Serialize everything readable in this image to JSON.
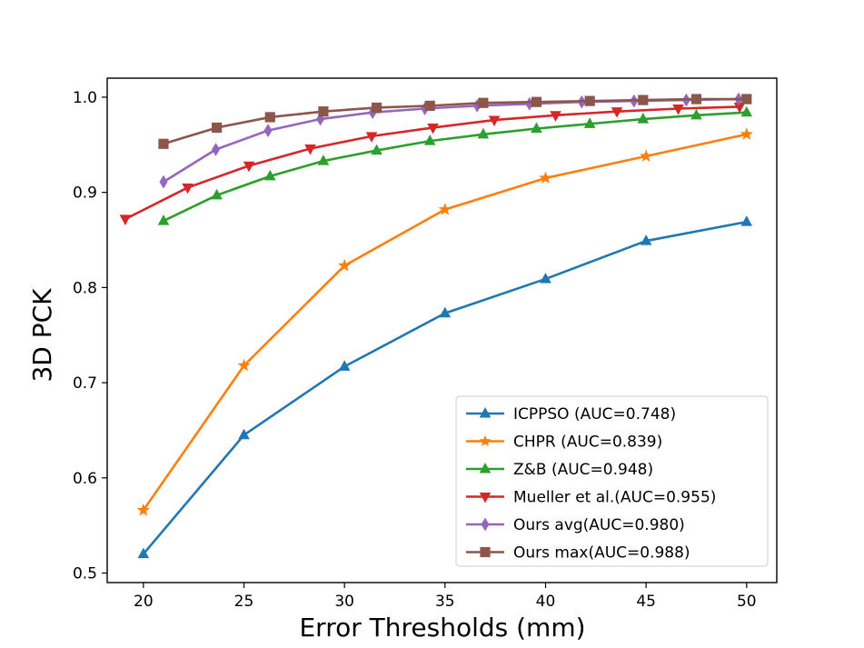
{
  "chart_data": {
    "type": "line",
    "title": "",
    "xlabel": "Error Thresholds (mm)",
    "ylabel": "3D PCK",
    "xlim": [
      18.2,
      51.5
    ],
    "ylim": [
      0.49,
      1.02
    ],
    "xticks": [
      20,
      25,
      30,
      35,
      40,
      45,
      50
    ],
    "yticks": [
      0.5,
      0.6,
      0.7,
      0.8,
      0.9,
      1.0
    ],
    "xtick_labels": [
      "20",
      "25",
      "30",
      "35",
      "40",
      "45",
      "50"
    ],
    "ytick_labels": [
      "0.5",
      "0.6",
      "0.7",
      "0.8",
      "0.9",
      "1.0"
    ],
    "legend_position": "lower-right",
    "series": [
      {
        "name": "ICPPSO (AUC=0.748)",
        "color": "#1f77b4",
        "marker": "triangle-up",
        "x": [
          20,
          25,
          30,
          35,
          40,
          45,
          50
        ],
        "y": [
          0.52,
          0.645,
          0.717,
          0.773,
          0.809,
          0.849,
          0.869
        ]
      },
      {
        "name": "CHPR (AUC=0.839)",
        "color": "#ff7f0e",
        "marker": "star",
        "x": [
          20,
          25,
          30,
          35,
          40,
          45,
          50
        ],
        "y": [
          0.566,
          0.718,
          0.823,
          0.882,
          0.915,
          0.938,
          0.961
        ]
      },
      {
        "name": "Z&B (AUC=0.948)",
        "color": "#2ca02c",
        "marker": "triangle-up",
        "x": [
          21,
          23.65,
          26.3,
          28.95,
          31.6,
          34.25,
          36.9,
          39.55,
          42.2,
          44.85,
          47.5,
          50
        ],
        "y": [
          0.87,
          0.897,
          0.917,
          0.933,
          0.944,
          0.954,
          0.961,
          0.967,
          0.972,
          0.977,
          0.981,
          0.984
        ]
      },
      {
        "name": "Mueller et al.(AUC=0.955)",
        "color": "#d62728",
        "marker": "triangle-down",
        "x": [
          19.1,
          22.2,
          25.25,
          28.3,
          31.35,
          34.4,
          37.45,
          40.5,
          43.55,
          46.6,
          49.65
        ],
        "y": [
          0.872,
          0.905,
          0.928,
          0.946,
          0.959,
          0.968,
          0.976,
          0.981,
          0.985,
          0.988,
          0.99
        ]
      },
      {
        "name": "Ours avg(AUC=0.980)",
        "color": "#9467bd",
        "marker": "diamond",
        "x": [
          21,
          23.6,
          26.2,
          28.8,
          31.4,
          34,
          36.6,
          39.2,
          41.8,
          44.4,
          47,
          49.6
        ],
        "y": [
          0.911,
          0.945,
          0.965,
          0.977,
          0.984,
          0.988,
          0.991,
          0.993,
          0.995,
          0.996,
          0.997,
          0.998
        ]
      },
      {
        "name": "Ours max(AUC=0.988)",
        "color": "#8c564b",
        "marker": "square",
        "x": [
          21,
          23.65,
          26.3,
          28.95,
          31.6,
          34.25,
          36.9,
          39.55,
          42.2,
          44.85,
          47.5,
          50
        ],
        "y": [
          0.951,
          0.968,
          0.979,
          0.985,
          0.989,
          0.991,
          0.994,
          0.995,
          0.996,
          0.997,
          0.998,
          0.998
        ]
      }
    ]
  }
}
